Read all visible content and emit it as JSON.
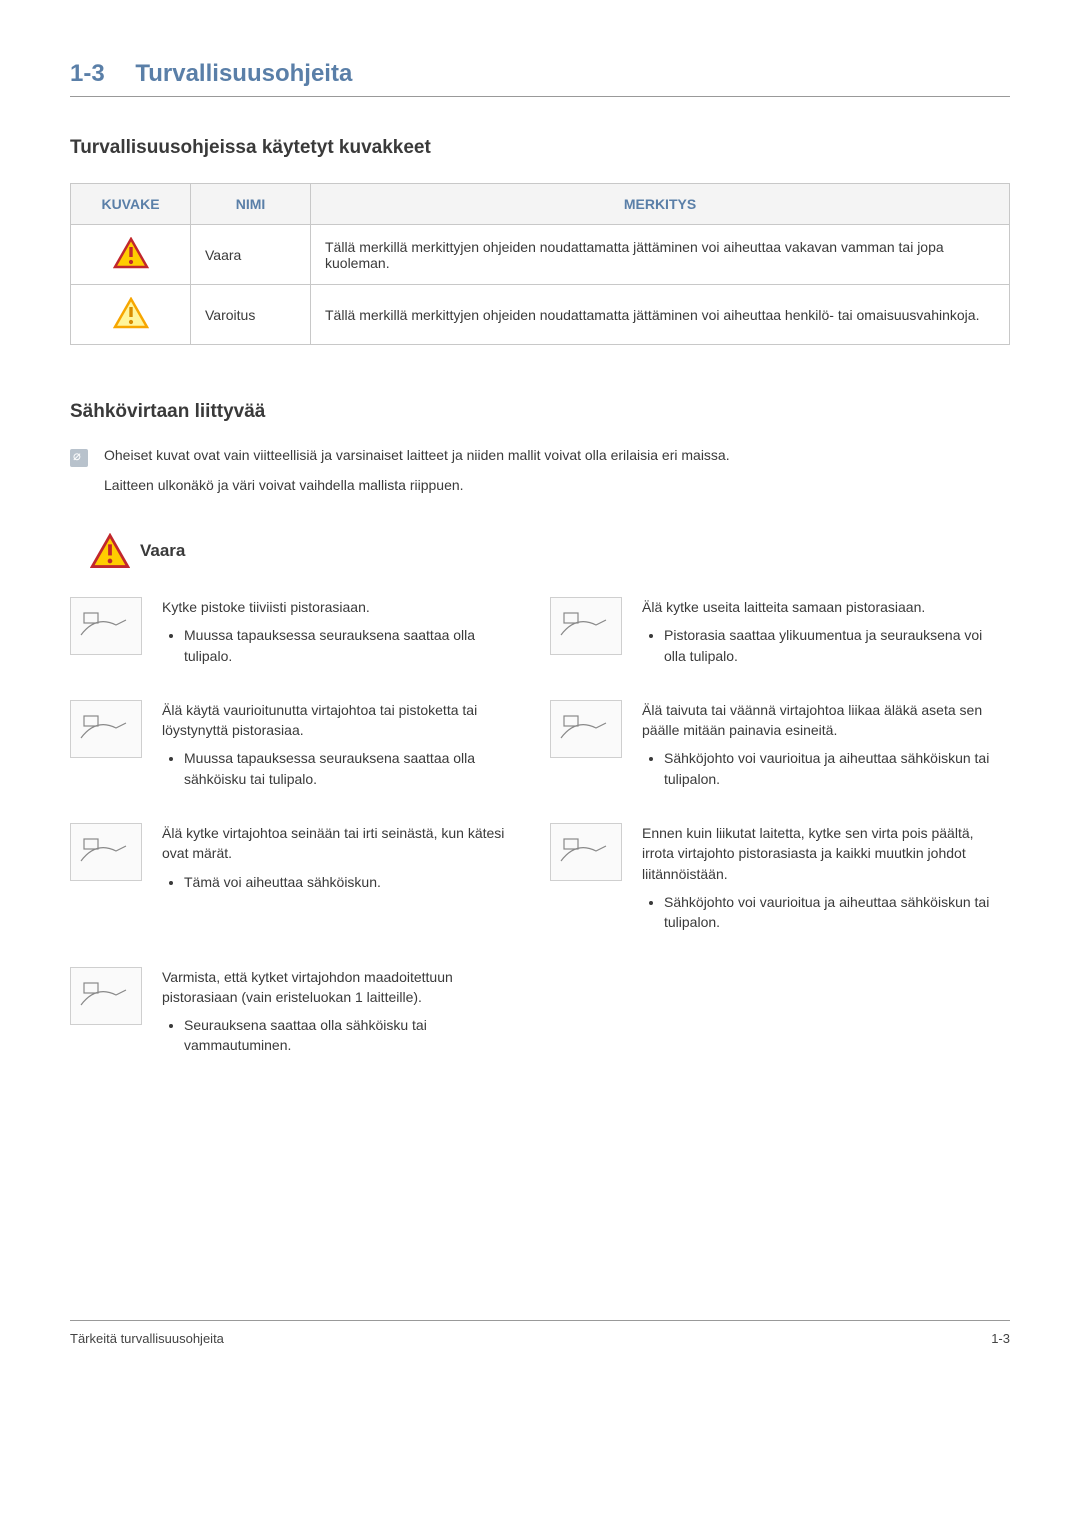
{
  "header": {
    "number": "1-3",
    "title": "Turvallisuusohjeita"
  },
  "sub1": "Turvallisuusohjeissa käytetyt kuvakkeet",
  "table": {
    "columns": [
      "KUVAKE",
      "NIMI",
      "MERKITYS"
    ],
    "rows": [
      {
        "name": "Vaara",
        "meaning": "Tällä merkillä merkittyjen ohjeiden noudattamatta jättäminen voi aiheuttaa vakavan vamman tai jopa kuoleman."
      },
      {
        "name": "Varoitus",
        "meaning": "Tällä merkillä merkittyjen ohjeiden noudattamatta jättäminen voi aiheuttaa henkilö- tai omaisuusvahinkoja."
      }
    ]
  },
  "sub2": "Sähkövirtaan liittyvää",
  "notes": [
    "Oheiset kuvat ovat vain viitteellisiä ja varsinaiset laitteet ja niiden mallit voivat olla erilaisia eri maissa.",
    "Laitteen ulkonäkö ja väri voivat vaihdella mallista riippuen."
  ],
  "dangerLabel": "Vaara",
  "items": [
    {
      "head": "Kytke pistoke tiiviisti pistorasiaan.",
      "bullets": [
        "Muussa tapauksessa seurauksena saattaa olla tulipalo."
      ]
    },
    {
      "head": "Älä kytke useita laitteita samaan pistorasiaan.",
      "bullets": [
        "Pistorasia saattaa ylikuumentua ja seurauksena voi olla tulipalo."
      ]
    },
    {
      "head": "Älä käytä vaurioitunutta virtajohtoa tai pistoketta tai löystynyttä pistorasiaa.",
      "bullets": [
        "Muussa tapauksessa seurauksena saattaa olla sähköisku tai tulipalo."
      ]
    },
    {
      "head": "Älä taivuta tai väännä virtajohtoa liikaa äläkä aseta sen päälle mitään painavia esineitä.",
      "bullets": [
        "Sähköjohto voi vaurioitua ja aiheuttaa sähköiskun tai tulipalon."
      ]
    },
    {
      "head": "Älä kytke virtajohtoa seinään tai irti seinästä, kun kätesi ovat märät.",
      "bullets": [
        "Tämä voi aiheuttaa sähköiskun."
      ]
    },
    {
      "head": "Ennen kuin liikutat laitetta, kytke sen virta pois päältä, irrota virtajohto pistorasiasta ja kaikki muutkin johdot liitännöistään.",
      "bullets": [
        "Sähköjohto voi vaurioitua ja aiheuttaa sähköiskun tai tulipalon."
      ]
    },
    {
      "head": "Varmista, että kytket virtajohdon maadoitettuun pistorasiaan (vain eristeluokan 1 laitteille).",
      "bullets": [
        "Seurauksena saattaa olla sähköisku tai vammautuminen."
      ]
    }
  ],
  "footer": {
    "left": "Tärkeitä turvallisuusohjeita",
    "right": "1-3"
  },
  "colors": {
    "headingBlue": "#5a7fa8",
    "danger": {
      "stroke": "#c1272d",
      "fill": "#ffcc00"
    },
    "warning": {
      "stroke": "#f7a600",
      "fill": "#fff59b"
    }
  }
}
